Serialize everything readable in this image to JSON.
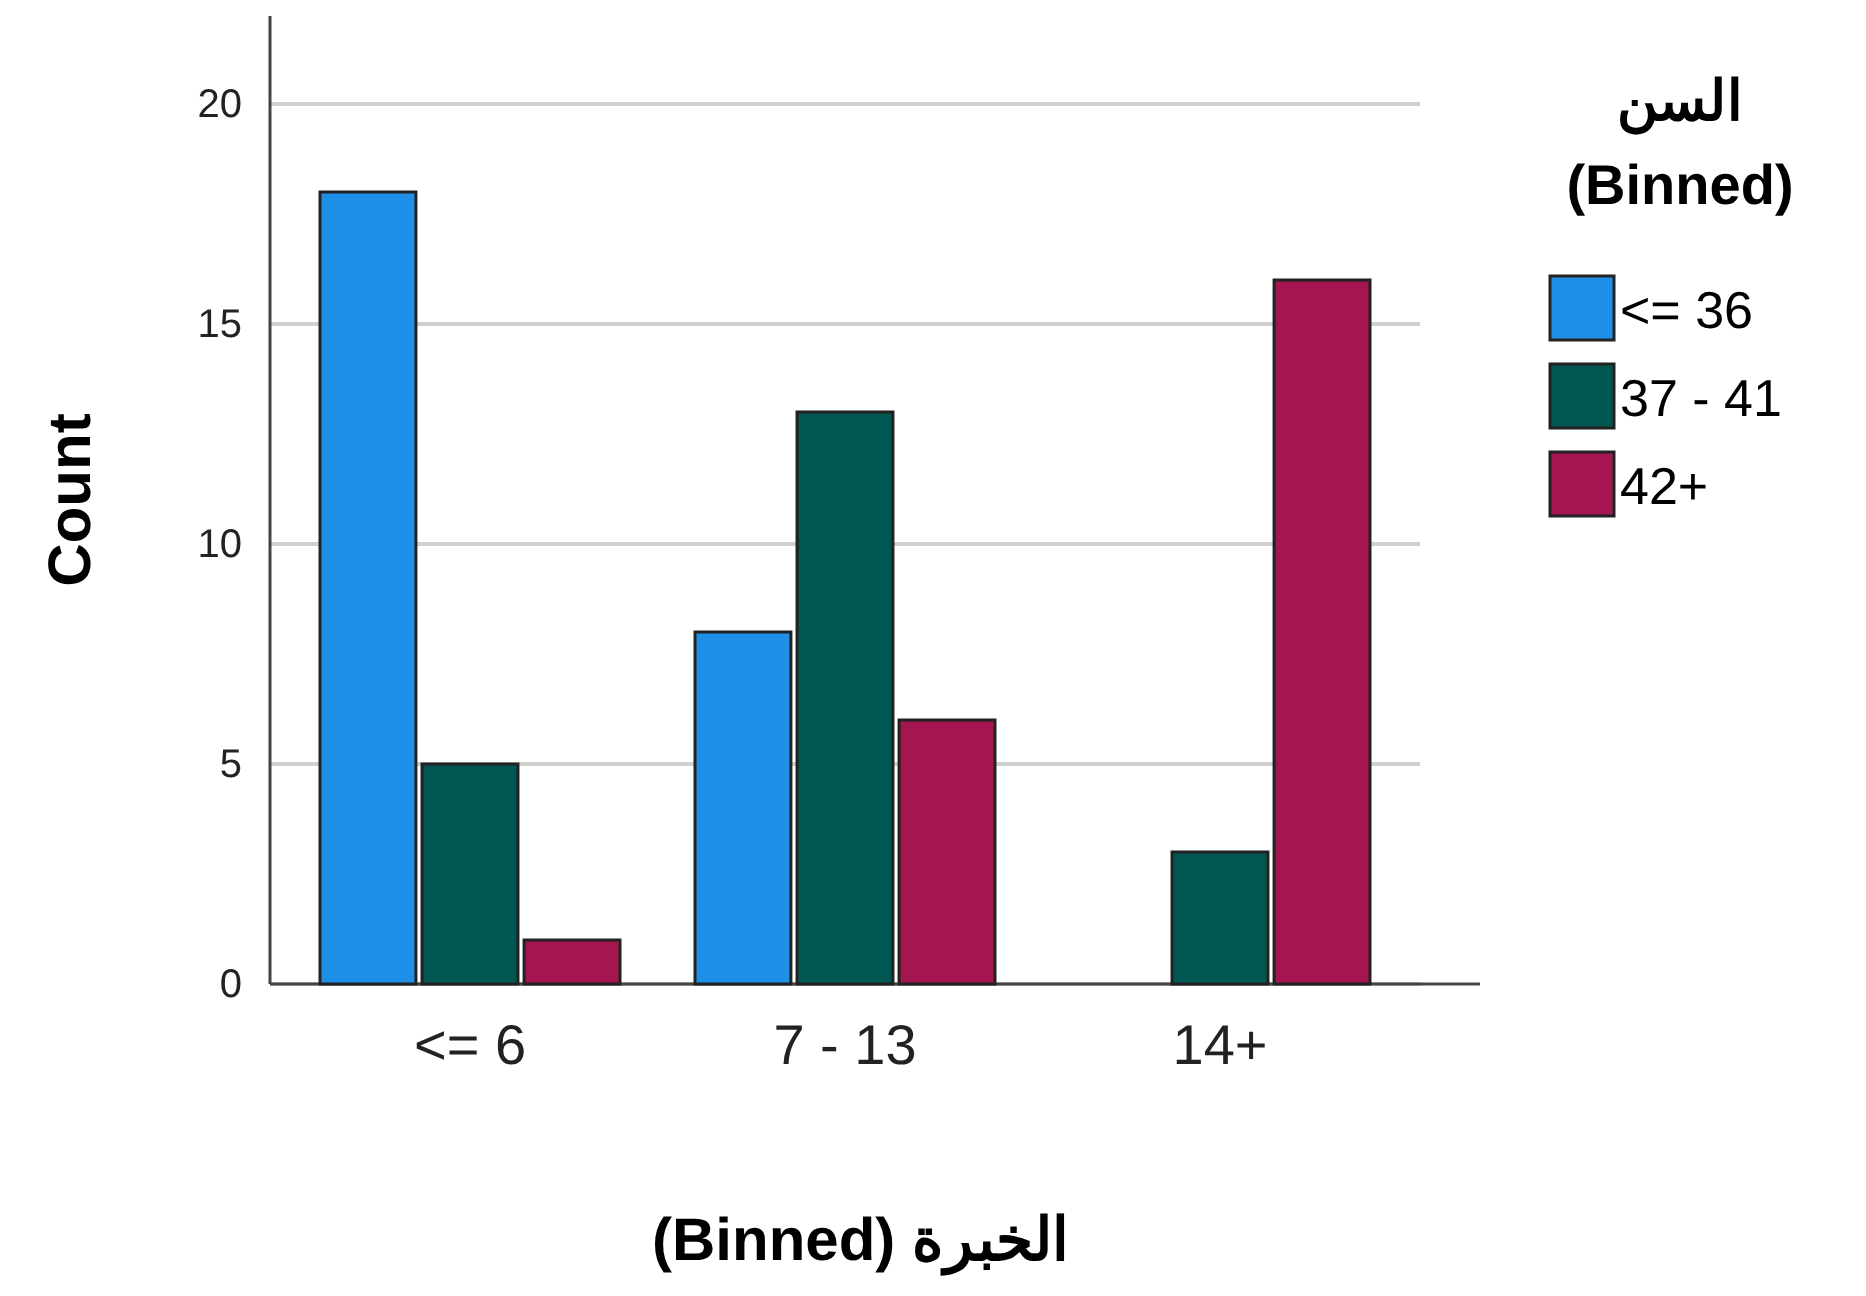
{
  "chart_data": {
    "type": "bar",
    "xlabel": "الخبرة (Binned)",
    "ylabel": "Count",
    "legend_title": "السن (Binned)",
    "categories": [
      "<= 6",
      "7 - 13",
      "14+"
    ],
    "series": [
      {
        "name": "<= 36",
        "color": "#1e90e8",
        "values": [
          18,
          8,
          null
        ]
      },
      {
        "name": "37 - 41",
        "color": "#005752",
        "values": [
          5,
          13,
          3
        ]
      },
      {
        "name": "42+",
        "color": "#a3164f",
        "values": [
          1,
          6,
          16
        ]
      }
    ],
    "ylim": [
      0,
      22
    ],
    "yticks": [
      0,
      5,
      10,
      15,
      20
    ],
    "grid": "y",
    "legend": "right"
  }
}
